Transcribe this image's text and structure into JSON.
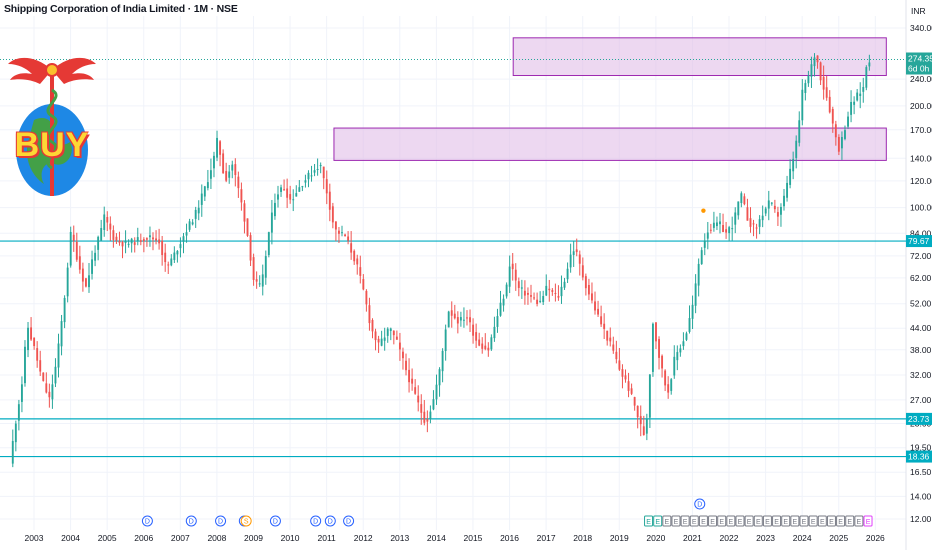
{
  "title": "Shipping Corporation of India Limited · 1M · NSE",
  "currency": "INR",
  "colors": {
    "up": "#26a69a",
    "down": "#ef5350",
    "zone_fill": "#e1bee7",
    "zone_stroke": "#9c27b0",
    "hline": "#00acc1",
    "price_tag": "#26a69a",
    "dividend": "#2962ff",
    "split": "#ff9800",
    "earnings_up": "#26a69a",
    "earnings_down": "#787b86",
    "earnings_next": "#e040fb"
  },
  "logo": {
    "text": "BUY",
    "icon": "caduceus-globe-icon"
  },
  "price_tag": {
    "price": "274.35",
    "countdown": "6d 0h"
  },
  "chart_data": {
    "type": "candlestick",
    "title": "Shipping Corporation of India Limited · 1M · NSE",
    "ylabel": "INR",
    "yscale": "log",
    "ylim": [
      11,
      420
    ],
    "xlim": [
      2002.4,
      2026.4
    ],
    "y_ticks": [
      12,
      14,
      16.5,
      19.5,
      23,
      27,
      32,
      38,
      44,
      52,
      62,
      72,
      84,
      100,
      120,
      140,
      170,
      200,
      240,
      340
    ],
    "y_tick_labels": [
      "12.00",
      "14.00",
      "16.50",
      "19.50",
      "23.00",
      "27.00",
      "32.00",
      "38.00",
      "44.00",
      "52.00",
      "62.00",
      "72.00",
      "84.00",
      "100.00",
      "120.00",
      "140.00",
      "170.00",
      "200.00",
      "240.00",
      "340.00"
    ],
    "x_ticks": [
      2003,
      2004,
      2005,
      2006,
      2007,
      2008,
      2009,
      2010,
      2011,
      2012,
      2013,
      2014,
      2015,
      2016,
      2017,
      2018,
      2019,
      2020,
      2021,
      2022,
      2023,
      2024,
      2025,
      2026
    ],
    "anchors": [
      [
        2002.42,
        17.5
      ],
      [
        2002.6,
        24
      ],
      [
        2002.75,
        30
      ],
      [
        2002.9,
        45
      ],
      [
        2003.1,
        38
      ],
      [
        2003.3,
        31
      ],
      [
        2003.5,
        27
      ],
      [
        2003.7,
        35
      ],
      [
        2003.9,
        52
      ],
      [
        2004.1,
        86
      ],
      [
        2004.3,
        68
      ],
      [
        2004.5,
        58
      ],
      [
        2004.7,
        72
      ],
      [
        2004.9,
        84
      ],
      [
        2005.0,
        94
      ],
      [
        2005.3,
        80
      ],
      [
        2005.6,
        78
      ],
      [
        2005.9,
        80
      ],
      [
        2006.2,
        82
      ],
      [
        2006.5,
        80
      ],
      [
        2006.7,
        66
      ],
      [
        2006.9,
        72
      ],
      [
        2007.2,
        84
      ],
      [
        2007.5,
        96
      ],
      [
        2007.8,
        118
      ],
      [
        2008.0,
        140
      ],
      [
        2008.1,
        160
      ],
      [
        2008.3,
        120
      ],
      [
        2008.5,
        135
      ],
      [
        2008.7,
        110
      ],
      [
        2008.9,
        86
      ],
      [
        2009.1,
        60
      ],
      [
        2009.3,
        58
      ],
      [
        2009.5,
        84
      ],
      [
        2009.7,
        110
      ],
      [
        2009.9,
        115
      ],
      [
        2010.1,
        105
      ],
      [
        2010.4,
        118
      ],
      [
        2010.7,
        128
      ],
      [
        2010.9,
        135
      ],
      [
        2011.1,
        110
      ],
      [
        2011.3,
        86
      ],
      [
        2011.6,
        82
      ],
      [
        2011.9,
        68
      ],
      [
        2012.1,
        56
      ],
      [
        2012.3,
        44
      ],
      [
        2012.5,
        39
      ],
      [
        2012.8,
        44
      ],
      [
        2013.0,
        40
      ],
      [
        2013.3,
        32
      ],
      [
        2013.6,
        26
      ],
      [
        2013.8,
        23
      ],
      [
        2014.0,
        27
      ],
      [
        2014.2,
        34
      ],
      [
        2014.4,
        50
      ],
      [
        2014.7,
        46
      ],
      [
        2014.9,
        48
      ],
      [
        2015.2,
        40
      ],
      [
        2015.5,
        38
      ],
      [
        2015.8,
        50
      ],
      [
        2016.0,
        58
      ],
      [
        2016.1,
        70
      ],
      [
        2016.3,
        58
      ],
      [
        2016.6,
        55
      ],
      [
        2016.9,
        52
      ],
      [
        2017.1,
        58
      ],
      [
        2017.4,
        54
      ],
      [
        2017.6,
        62
      ],
      [
        2017.8,
        76
      ],
      [
        2017.9,
        74
      ],
      [
        2018.1,
        62
      ],
      [
        2018.3,
        54
      ],
      [
        2018.6,
        45
      ],
      [
        2018.9,
        38
      ],
      [
        2019.1,
        33
      ],
      [
        2019.3,
        30
      ],
      [
        2019.5,
        26
      ],
      [
        2019.7,
        22
      ],
      [
        2019.8,
        21
      ],
      [
        2019.9,
        30
      ],
      [
        2020.0,
        46
      ],
      [
        2020.2,
        35
      ],
      [
        2020.4,
        28
      ],
      [
        2020.6,
        36
      ],
      [
        2020.9,
        42
      ],
      [
        2021.1,
        52
      ],
      [
        2021.3,
        74
      ],
      [
        2021.5,
        86
      ],
      [
        2021.8,
        90
      ],
      [
        2022.0,
        84
      ],
      [
        2022.2,
        90
      ],
      [
        2022.4,
        110
      ],
      [
        2022.6,
        92
      ],
      [
        2022.8,
        86
      ],
      [
        2023.0,
        96
      ],
      [
        2023.2,
        104
      ],
      [
        2023.4,
        94
      ],
      [
        2023.6,
        108
      ],
      [
        2023.8,
        135
      ],
      [
        2023.9,
        150
      ],
      [
        2024.0,
        180
      ],
      [
        2024.1,
        225
      ],
      [
        2024.3,
        250
      ],
      [
        2024.4,
        285
      ],
      [
        2024.5,
        270
      ],
      [
        2024.6,
        240
      ],
      [
        2024.8,
        205
      ],
      [
        2024.95,
        170
      ],
      [
        2025.1,
        148
      ],
      [
        2025.2,
        165
      ],
      [
        2025.4,
        200
      ],
      [
        2025.6,
        215
      ],
      [
        2025.8,
        230
      ],
      [
        2025.85,
        274.35
      ]
    ],
    "zones": [
      {
        "x_start": 2011.2,
        "x_end": 2026.3,
        "y_low": 138,
        "y_high": 172
      },
      {
        "x_start": 2016.1,
        "x_end": 2026.3,
        "y_low": 246,
        "y_high": 318
      }
    ],
    "horizontal_lines": [
      {
        "value": 79.67,
        "label": "79.67"
      },
      {
        "value": 23.73,
        "label": "23.73"
      },
      {
        "value": 18.36,
        "label": "18.36"
      }
    ],
    "events": [
      {
        "x": 2006.1,
        "kind": "D"
      },
      {
        "x": 2007.3,
        "kind": "D"
      },
      {
        "x": 2008.1,
        "kind": "D"
      },
      {
        "x": 2008.75,
        "kind": "D"
      },
      {
        "x": 2008.8,
        "kind": "S"
      },
      {
        "x": 2009.6,
        "kind": "D"
      },
      {
        "x": 2010.7,
        "kind": "D"
      },
      {
        "x": 2011.1,
        "kind": "D"
      },
      {
        "x": 2011.6,
        "kind": "D"
      },
      {
        "x": 2021.2,
        "kind": "D",
        "raised": true
      }
    ],
    "earnings_start": 2019.8,
    "earnings_end": 2025.9
  }
}
